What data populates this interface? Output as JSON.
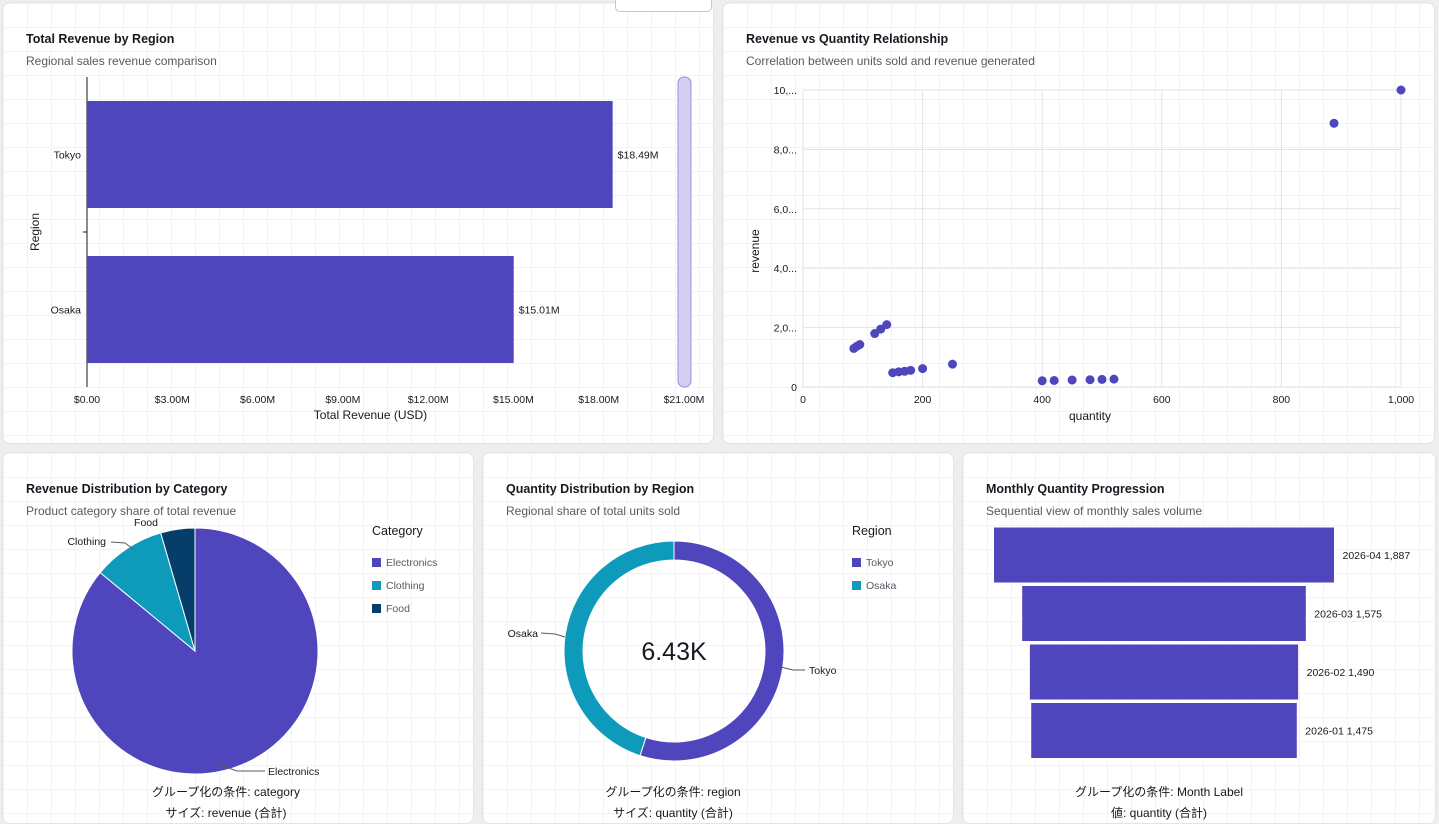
{
  "colors": {
    "primary": "#4f46be",
    "teal": "#0e9aba",
    "navy": "#073d69",
    "scroll": "#d6cdf5"
  },
  "panels": {
    "bar": {
      "title": "Total Revenue by Region",
      "subtitle": "Regional sales revenue comparison"
    },
    "scatter": {
      "title": "Revenue vs Quantity Relationship",
      "subtitle": "Correlation between units sold and revenue generated"
    },
    "pie": {
      "title": "Revenue Distribution by Category",
      "subtitle": "Product category share of total revenue",
      "footer_line1": "グループ化の条件: category",
      "footer_line2": "サイズ: revenue (合計)"
    },
    "donut": {
      "title": "Quantity Distribution by Region",
      "subtitle": "Regional share of total units sold",
      "footer_line1": "グループ化の条件: region",
      "footer_line2": "サイズ: quantity (合計)"
    },
    "funnel": {
      "title": "Monthly Quantity Progression",
      "subtitle": "Sequential view of monthly sales volume",
      "footer_line1": "グループ化の条件: Month Label",
      "footer_line2": "値: quantity (合計)"
    }
  },
  "chart_data": [
    {
      "type": "bar",
      "orientation": "horizontal",
      "categories": [
        "Tokyo",
        "Osaka"
      ],
      "values": [
        18490000,
        15010000
      ],
      "value_labels": [
        "$18.49M",
        "$15.01M"
      ],
      "xlabel": "Total Revenue (USD)",
      "ylabel": "Region",
      "xlim": [
        0,
        21000000
      ],
      "x_ticks": [
        "$0.00",
        "$3.00M",
        "$6.00M",
        "$9.00M",
        "$12.00M",
        "$15.00M",
        "$18.00M",
        "$21.00M"
      ]
    },
    {
      "type": "scatter",
      "xlabel": "quantity",
      "ylabel": "revenue",
      "xlim": [
        0,
        1000
      ],
      "ylim": [
        0,
        10000
      ],
      "x_ticks": [
        "0",
        "200",
        "400",
        "600",
        "800",
        "1,000"
      ],
      "y_ticks": [
        "0",
        "2,0...",
        "4,0...",
        "6,0...",
        "8,0...",
        "10,..."
      ],
      "grid": true,
      "points": [
        {
          "x": 85,
          "y": 1300
        },
        {
          "x": 90,
          "y": 1370
        },
        {
          "x": 95,
          "y": 1430
        },
        {
          "x": 120,
          "y": 1800
        },
        {
          "x": 130,
          "y": 1950
        },
        {
          "x": 140,
          "y": 2100
        },
        {
          "x": 150,
          "y": 480
        },
        {
          "x": 160,
          "y": 510
        },
        {
          "x": 170,
          "y": 530
        },
        {
          "x": 180,
          "y": 560
        },
        {
          "x": 200,
          "y": 620
        },
        {
          "x": 250,
          "y": 770
        },
        {
          "x": 400,
          "y": 210
        },
        {
          "x": 420,
          "y": 220
        },
        {
          "x": 450,
          "y": 235
        },
        {
          "x": 480,
          "y": 245
        },
        {
          "x": 500,
          "y": 255
        },
        {
          "x": 520,
          "y": 265
        },
        {
          "x": 888,
          "y": 8880
        },
        {
          "x": 1000,
          "y": 10000
        }
      ]
    },
    {
      "type": "pie",
      "legend_title": "Category",
      "legend_position": "right",
      "slices": [
        {
          "label": "Electronics",
          "value": 0.86
        },
        {
          "label": "Clothing",
          "value": 0.095
        },
        {
          "label": "Food",
          "value": 0.045
        }
      ]
    },
    {
      "type": "pie",
      "variant": "donut",
      "legend_title": "Region",
      "legend_position": "right",
      "center_label": "6.43K",
      "slices": [
        {
          "label": "Tokyo",
          "value": 0.55
        },
        {
          "label": "Osaka",
          "value": 0.45
        }
      ]
    },
    {
      "type": "bar",
      "variant": "funnel",
      "categories": [
        "2026-04",
        "2026-03",
        "2026-02",
        "2026-01"
      ],
      "values": [
        1887,
        1575,
        1490,
        1475
      ],
      "value_labels": [
        "2026-04 1,887",
        "2026-03 1,575",
        "2026-02 1,490",
        "2026-01 1,475"
      ]
    }
  ]
}
